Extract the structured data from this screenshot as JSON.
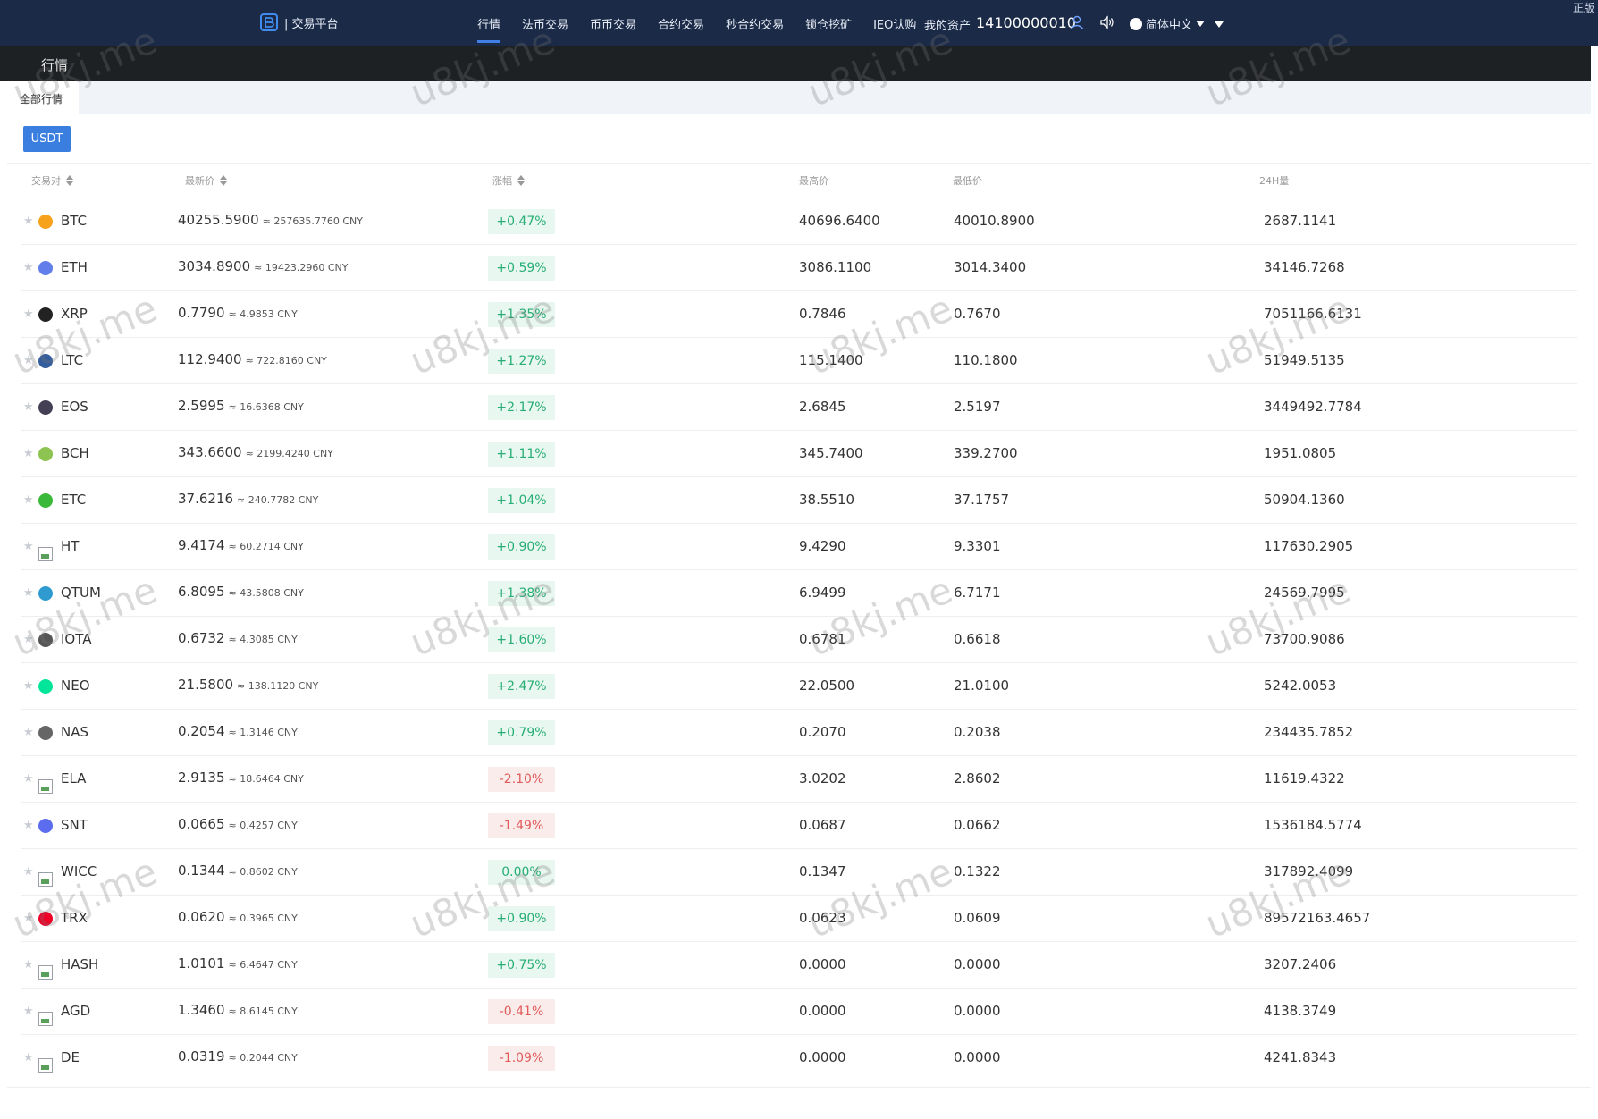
{
  "header": {
    "brand": "| 交易平台",
    "nav": [
      "行情",
      "法币交易",
      "币币交易",
      "合约交易",
      "秒合约交易",
      "锁仓挖矿",
      "IEO认购"
    ],
    "assets_label": "我的资产",
    "account": "14100000010",
    "language": "简体中文",
    "corner_text": "正版"
  },
  "page": {
    "title": "行情",
    "tab": "全部行情",
    "quote_button": "USDT"
  },
  "table": {
    "headers": {
      "pair": "交易对",
      "price": "最新价",
      "change": "涨幅",
      "high": "最高价",
      "low": "最低价",
      "volume": "24H量"
    },
    "rows": [
      {
        "coin": "BTC",
        "price": "40255.5900",
        "cny": "≈ 257635.7760 CNY",
        "change": "+0.47%",
        "dir": "up",
        "high": "40696.6400",
        "low": "40010.8900",
        "vol": "2687.1141",
        "icon": "btc-icon",
        "color": "#f7a21b"
      },
      {
        "coin": "ETH",
        "price": "3034.8900",
        "cny": "≈ 19423.2960 CNY",
        "change": "+0.59%",
        "dir": "up",
        "high": "3086.1100",
        "low": "3014.3400",
        "vol": "34146.7268",
        "icon": "eth-icon",
        "color": "#627eea"
      },
      {
        "coin": "XRP",
        "price": "0.7790",
        "cny": "≈ 4.9853 CNY",
        "change": "+1.35%",
        "dir": "up",
        "high": "0.7846",
        "low": "0.7670",
        "vol": "7051166.6131",
        "icon": "xrp-icon",
        "color": "#222222"
      },
      {
        "coin": "LTC",
        "price": "112.9400",
        "cny": "≈ 722.8160 CNY",
        "change": "+1.27%",
        "dir": "up",
        "high": "115.1400",
        "low": "110.1800",
        "vol": "51949.5135",
        "icon": "ltc-icon",
        "color": "#345d9d"
      },
      {
        "coin": "EOS",
        "price": "2.5995",
        "cny": "≈ 16.6368 CNY",
        "change": "+2.17%",
        "dir": "up",
        "high": "2.6845",
        "low": "2.5197",
        "vol": "3449492.7784",
        "icon": "eos-icon",
        "color": "#443f54"
      },
      {
        "coin": "BCH",
        "price": "343.6600",
        "cny": "≈ 2199.4240 CNY",
        "change": "+1.11%",
        "dir": "up",
        "high": "345.7400",
        "low": "339.2700",
        "vol": "1951.0805",
        "icon": "bch-icon",
        "color": "#8dc351"
      },
      {
        "coin": "ETC",
        "price": "37.6216",
        "cny": "≈ 240.7782 CNY",
        "change": "+1.04%",
        "dir": "up",
        "high": "38.5510",
        "low": "37.1757",
        "vol": "50904.1360",
        "icon": "etc-icon",
        "color": "#3ab83a"
      },
      {
        "coin": "HT",
        "price": "9.4174",
        "cny": "≈ 60.2714 CNY",
        "change": "+0.90%",
        "dir": "up",
        "high": "9.4290",
        "low": "9.3301",
        "vol": "117630.2905",
        "icon": "broken-image-icon",
        "color": ""
      },
      {
        "coin": "QTUM",
        "price": "6.8095",
        "cny": "≈ 43.5808 CNY",
        "change": "+1.38%",
        "dir": "up",
        "high": "6.9499",
        "low": "6.7171",
        "vol": "24569.7995",
        "icon": "qtum-icon",
        "color": "#2e9ad0"
      },
      {
        "coin": "IOTA",
        "price": "0.6732",
        "cny": "≈ 4.3085 CNY",
        "change": "+1.60%",
        "dir": "up",
        "high": "0.6781",
        "low": "0.6618",
        "vol": "73700.9086",
        "icon": "iota-icon",
        "color": "#555555"
      },
      {
        "coin": "NEO",
        "price": "21.5800",
        "cny": "≈ 138.1120 CNY",
        "change": "+2.47%",
        "dir": "up",
        "high": "22.0500",
        "low": "21.0100",
        "vol": "5242.0053",
        "icon": "neo-icon",
        "color": "#00e599"
      },
      {
        "coin": "NAS",
        "price": "0.2054",
        "cny": "≈ 1.3146 CNY",
        "change": "+0.79%",
        "dir": "up",
        "high": "0.2070",
        "low": "0.2038",
        "vol": "234435.7852",
        "icon": "nas-icon",
        "color": "#666666"
      },
      {
        "coin": "ELA",
        "price": "2.9135",
        "cny": "≈ 18.6464 CNY",
        "change": "-2.10%",
        "dir": "down",
        "high": "3.0202",
        "low": "2.8602",
        "vol": "11619.4322",
        "icon": "broken-image-icon",
        "color": ""
      },
      {
        "coin": "SNT",
        "price": "0.0665",
        "cny": "≈ 0.4257 CNY",
        "change": "-1.49%",
        "dir": "down",
        "high": "0.0687",
        "low": "0.0662",
        "vol": "1536184.5774",
        "icon": "snt-icon",
        "color": "#5b6dee"
      },
      {
        "coin": "WICC",
        "price": "0.1344",
        "cny": "≈ 0.8602 CNY",
        "change": "0.00%",
        "dir": "up",
        "high": "0.1347",
        "low": "0.1322",
        "vol": "317892.4099",
        "icon": "broken-image-icon",
        "color": ""
      },
      {
        "coin": "TRX",
        "price": "0.0620",
        "cny": "≈ 0.3965 CNY",
        "change": "+0.90%",
        "dir": "up",
        "high": "0.0623",
        "low": "0.0609",
        "vol": "89572163.4657",
        "icon": "trx-icon",
        "color": "#ef0027"
      },
      {
        "coin": "HASH",
        "price": "1.0101",
        "cny": "≈ 6.4647 CNY",
        "change": "+0.75%",
        "dir": "up",
        "high": "0.0000",
        "low": "0.0000",
        "vol": "3207.2406",
        "icon": "broken-image-icon",
        "color": ""
      },
      {
        "coin": "AGD",
        "price": "1.3460",
        "cny": "≈ 8.6145 CNY",
        "change": "-0.41%",
        "dir": "down",
        "high": "0.0000",
        "low": "0.0000",
        "vol": "4138.3749",
        "icon": "broken-image-icon",
        "color": ""
      },
      {
        "coin": "DE",
        "price": "0.0319",
        "cny": "≈ 0.2044 CNY",
        "change": "-1.09%",
        "dir": "down",
        "high": "0.0000",
        "low": "0.0000",
        "vol": "4241.8343",
        "icon": "broken-image-icon",
        "color": ""
      }
    ]
  },
  "watermark": "u8kj.me"
}
